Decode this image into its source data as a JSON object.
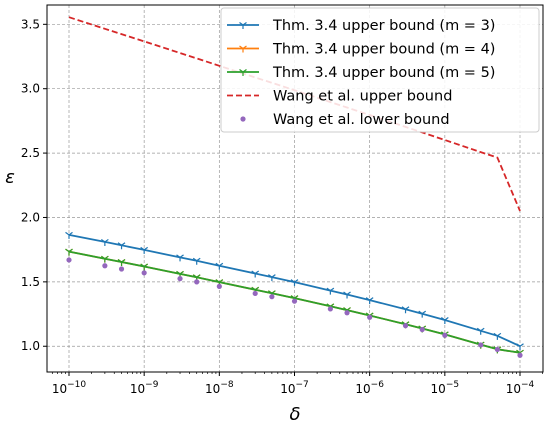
{
  "chart_data": {
    "type": "line",
    "xlabel": "δ",
    "ylabel": "ε",
    "xscale": "log",
    "xlim": [
      1e-10,
      0.0001
    ],
    "ylim": [
      0.8,
      3.65
    ],
    "grid": true,
    "legend_position": "top-right",
    "x_ticks": [
      {
        "value": 1e-10,
        "base": "10",
        "exp": "−10"
      },
      {
        "value": 1e-09,
        "base": "10",
        "exp": "−9"
      },
      {
        "value": 1e-08,
        "base": "10",
        "exp": "−8"
      },
      {
        "value": 1e-07,
        "base": "10",
        "exp": "−7"
      },
      {
        "value": 1e-06,
        "base": "10",
        "exp": "−6"
      },
      {
        "value": 1e-05,
        "base": "10",
        "exp": "−5"
      },
      {
        "value": 0.0001,
        "base": "10",
        "exp": "−4"
      }
    ],
    "y_ticks": [
      {
        "value": 1.0,
        "label": "1.0"
      },
      {
        "value": 1.5,
        "label": "1.5"
      },
      {
        "value": 2.0,
        "label": "2.0"
      },
      {
        "value": 2.5,
        "label": "2.5"
      },
      {
        "value": 3.0,
        "label": "3.0"
      },
      {
        "value": 3.5,
        "label": "3.5"
      }
    ],
    "x": [
      1e-10,
      3e-10,
      5e-10,
      1e-09,
      3e-09,
      5e-09,
      1e-08,
      3e-08,
      5e-08,
      1e-07,
      3e-07,
      5e-07,
      1e-06,
      3e-06,
      5e-06,
      1e-05,
      3e-05,
      5e-05,
      0.0001
    ],
    "series": [
      {
        "name": "Thm. 3.4 upper bound (m = 3)",
        "color": "#1f77b4",
        "style": "line-tri",
        "values": [
          1.865,
          1.81,
          1.784,
          1.748,
          1.69,
          1.664,
          1.625,
          1.565,
          1.537,
          1.498,
          1.432,
          1.402,
          1.358,
          1.287,
          1.253,
          1.204,
          1.12,
          1.081,
          1.0
        ]
      },
      {
        "name": "Thm. 3.4 upper bound (m = 4)",
        "color": "#ff7f0e",
        "style": "line-tri",
        "values": [
          1.735,
          1.68,
          1.654,
          1.619,
          1.562,
          1.536,
          1.498,
          1.439,
          1.412,
          1.374,
          1.31,
          1.281,
          1.239,
          1.171,
          1.138,
          1.092,
          1.013,
          0.976,
          0.95
        ]
      },
      {
        "name": "Thm. 3.4 upper bound (m = 5)",
        "color": "#2ca02c",
        "style": "line-tri",
        "values": [
          1.735,
          1.68,
          1.654,
          1.619,
          1.562,
          1.536,
          1.498,
          1.439,
          1.412,
          1.374,
          1.31,
          1.281,
          1.239,
          1.171,
          1.138,
          1.092,
          1.013,
          0.976,
          0.95
        ]
      },
      {
        "name": "Wang et al. upper bound",
        "color": "#d62728",
        "style": "dashed",
        "values": [
          3.555,
          3.465,
          3.424,
          3.367,
          3.277,
          3.235,
          3.178,
          3.087,
          3.046,
          2.988,
          2.896,
          2.854,
          2.796,
          2.703,
          2.661,
          2.602,
          2.508,
          2.465,
          2.05
        ]
      },
      {
        "name": "Wang et al. lower bound",
        "color": "#9467bd",
        "style": "dots",
        "values": [
          1.67,
          1.625,
          1.6,
          1.57,
          1.525,
          1.5,
          1.465,
          1.41,
          1.385,
          1.35,
          1.29,
          1.26,
          1.225,
          1.16,
          1.13,
          1.085,
          1.01,
          0.975,
          0.93
        ]
      }
    ]
  }
}
